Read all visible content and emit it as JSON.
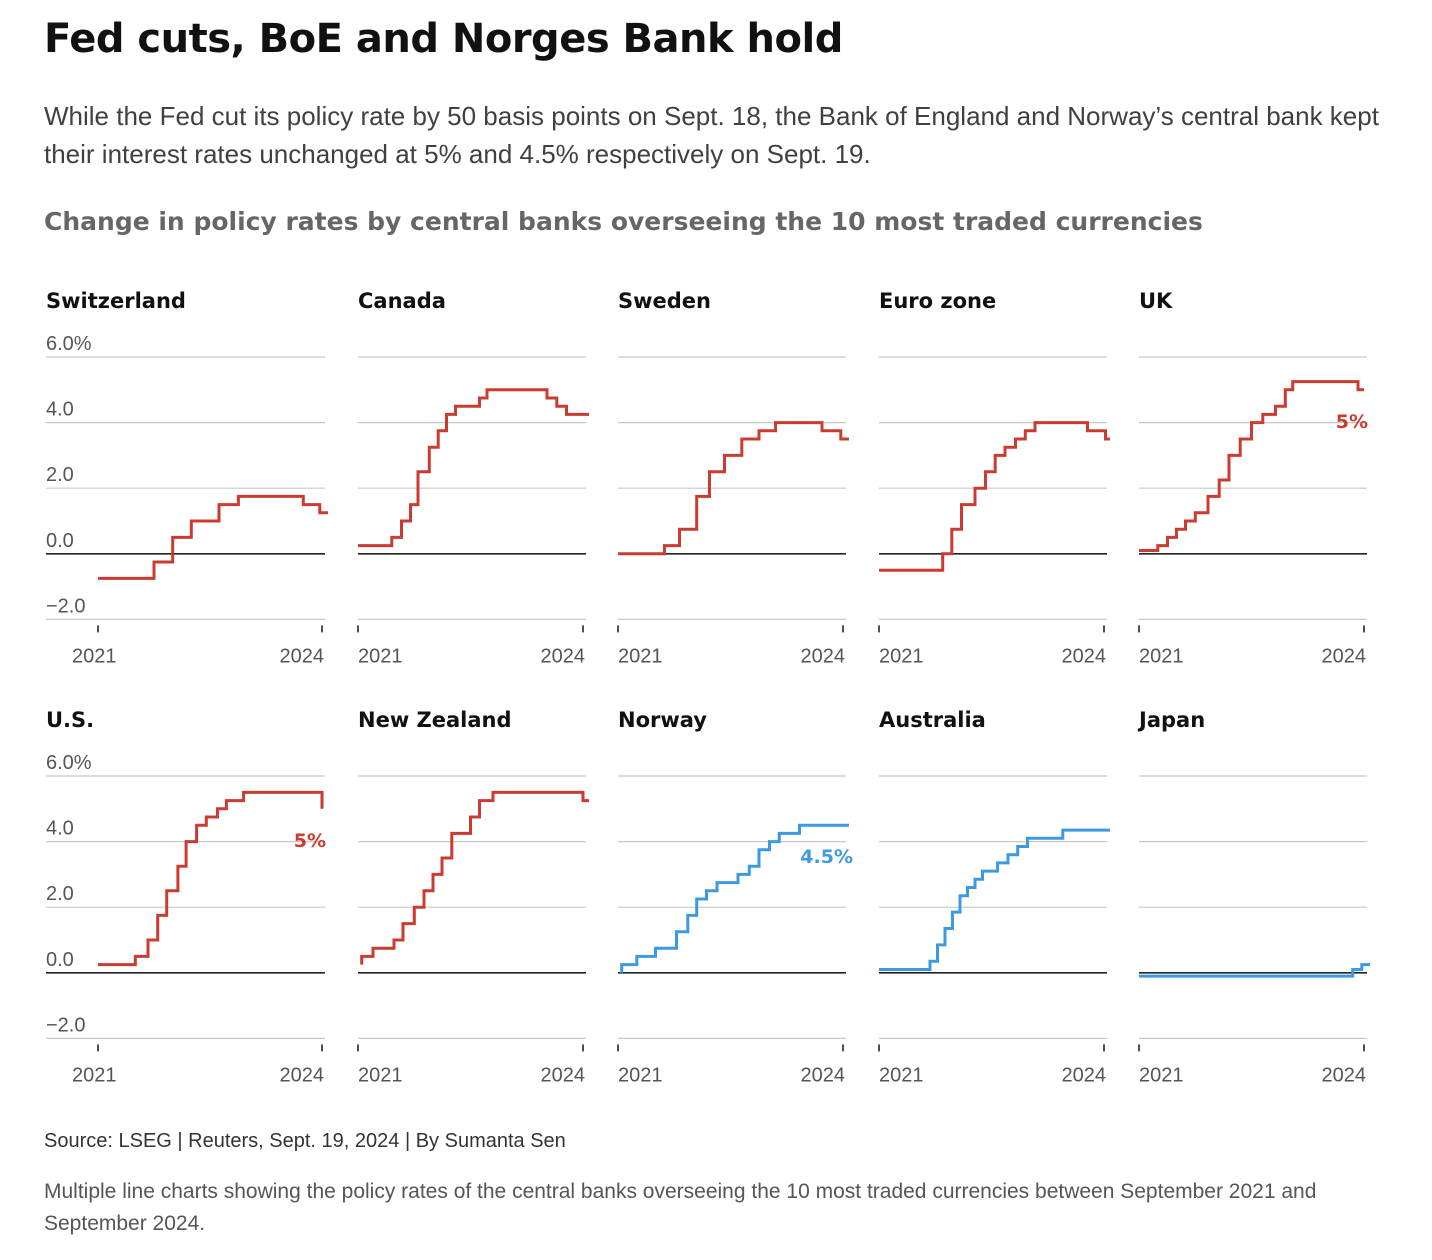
{
  "header": {
    "title": "Fed cuts, BoE and Norges Bank hold",
    "subtitle": "While the Fed cut its policy rate by 50 basis points on Sept. 18, the Bank of England and Norway’s central bank kept their interest rates unchanged at 5% and 4.5% respectively on Sept. 19.",
    "chart_heading": "Change in policy rates by central banks overseeing the 10 most traded currencies"
  },
  "footer": {
    "source": "Source: LSEG | Reuters, Sept. 19, 2024 | By Sumanta Sen",
    "description": "Multiple line charts showing the policy rates of the central banks overseeing the 10 most traded currencies between September 2021 and September 2024."
  },
  "colors": {
    "hiked": "#cc3b31",
    "cut_or_low": "#3d9ae0",
    "grid": "#c8c8c8",
    "zero_line": "#222222",
    "label": "#555555"
  },
  "chart_data": [
    {
      "type": "line",
      "panel": "Switzerland",
      "color": "#cc3b31",
      "ylim": [
        -2,
        6
      ],
      "yticks": [
        "6.0%",
        "4.0",
        "2.0",
        "0.0",
        "−2.0"
      ],
      "xticks": [
        "2021",
        "2024"
      ],
      "points": [
        [
          2021.0,
          -0.75
        ],
        [
          2021.75,
          -0.75
        ],
        [
          2021.75,
          -0.25
        ],
        [
          2022.0,
          -0.25
        ],
        [
          2022.0,
          0.5
        ],
        [
          2022.25,
          0.5
        ],
        [
          2022.25,
          1.0
        ],
        [
          2022.62,
          1.0
        ],
        [
          2022.62,
          1.5
        ],
        [
          2022.88,
          1.5
        ],
        [
          2022.88,
          1.75
        ],
        [
          2023.75,
          1.75
        ],
        [
          2023.75,
          1.5
        ],
        [
          2023.97,
          1.5
        ],
        [
          2023.97,
          1.25
        ],
        [
          2024.08,
          1.25
        ]
      ]
    },
    {
      "type": "line",
      "panel": "Canada",
      "color": "#cc3b31",
      "ylim": [
        -2,
        6
      ],
      "yticks": [],
      "xticks": [
        "2021",
        "2024"
      ],
      "points": [
        [
          2021.0,
          0.25
        ],
        [
          2021.45,
          0.25
        ],
        [
          2021.45,
          0.5
        ],
        [
          2021.58,
          0.5
        ],
        [
          2021.58,
          1.0
        ],
        [
          2021.7,
          1.0
        ],
        [
          2021.7,
          1.5
        ],
        [
          2021.8,
          1.5
        ],
        [
          2021.8,
          2.5
        ],
        [
          2021.95,
          2.5
        ],
        [
          2021.95,
          3.25
        ],
        [
          2022.07,
          3.25
        ],
        [
          2022.07,
          3.75
        ],
        [
          2022.18,
          3.75
        ],
        [
          2022.18,
          4.25
        ],
        [
          2022.3,
          4.25
        ],
        [
          2022.3,
          4.5
        ],
        [
          2022.62,
          4.5
        ],
        [
          2022.62,
          4.75
        ],
        [
          2022.72,
          4.75
        ],
        [
          2022.72,
          5.0
        ],
        [
          2023.52,
          5.0
        ],
        [
          2023.52,
          4.75
        ],
        [
          2023.65,
          4.75
        ],
        [
          2023.65,
          4.5
        ],
        [
          2023.78,
          4.5
        ],
        [
          2023.78,
          4.25
        ],
        [
          2024.08,
          4.25
        ]
      ]
    },
    {
      "type": "line",
      "panel": "Sweden",
      "color": "#cc3b31",
      "ylim": [
        -2,
        6
      ],
      "yticks": [],
      "xticks": [
        "2021",
        "2024"
      ],
      "points": [
        [
          2021.0,
          0.0
        ],
        [
          2021.62,
          0.0
        ],
        [
          2021.62,
          0.25
        ],
        [
          2021.82,
          0.25
        ],
        [
          2021.82,
          0.75
        ],
        [
          2022.05,
          0.75
        ],
        [
          2022.05,
          1.75
        ],
        [
          2022.22,
          1.75
        ],
        [
          2022.22,
          2.5
        ],
        [
          2022.42,
          2.5
        ],
        [
          2022.42,
          3.0
        ],
        [
          2022.65,
          3.0
        ],
        [
          2022.65,
          3.5
        ],
        [
          2022.88,
          3.5
        ],
        [
          2022.88,
          3.75
        ],
        [
          2023.1,
          3.75
        ],
        [
          2023.1,
          4.0
        ],
        [
          2023.72,
          4.0
        ],
        [
          2023.72,
          3.75
        ],
        [
          2023.97,
          3.75
        ],
        [
          2023.97,
          3.5
        ],
        [
          2024.08,
          3.5
        ]
      ]
    },
    {
      "type": "line",
      "panel": "Euro zone",
      "color": "#cc3b31",
      "ylim": [
        -2,
        6
      ],
      "yticks": [],
      "xticks": [
        "2021",
        "2024"
      ],
      "points": [
        [
          2021.0,
          -0.5
        ],
        [
          2021.85,
          -0.5
        ],
        [
          2021.85,
          0.0
        ],
        [
          2021.97,
          0.0
        ],
        [
          2021.97,
          0.75
        ],
        [
          2022.1,
          0.75
        ],
        [
          2022.1,
          1.5
        ],
        [
          2022.28,
          1.5
        ],
        [
          2022.28,
          2.0
        ],
        [
          2022.42,
          2.0
        ],
        [
          2022.42,
          2.5
        ],
        [
          2022.55,
          2.5
        ],
        [
          2022.55,
          3.0
        ],
        [
          2022.68,
          3.0
        ],
        [
          2022.68,
          3.25
        ],
        [
          2022.82,
          3.25
        ],
        [
          2022.82,
          3.5
        ],
        [
          2022.95,
          3.5
        ],
        [
          2022.95,
          3.75
        ],
        [
          2023.08,
          3.75
        ],
        [
          2023.08,
          4.0
        ],
        [
          2023.78,
          4.0
        ],
        [
          2023.78,
          3.75
        ],
        [
          2024.02,
          3.75
        ],
        [
          2024.02,
          3.5
        ],
        [
          2024.08,
          3.5
        ]
      ]
    },
    {
      "type": "line",
      "panel": "UK",
      "color": "#cc3b31",
      "ylim": [
        -2,
        6
      ],
      "yticks": [],
      "xticks": [
        "2021",
        "2024"
      ],
      "end_label": "5%",
      "points": [
        [
          2021.0,
          0.1
        ],
        [
          2021.25,
          0.1
        ],
        [
          2021.25,
          0.25
        ],
        [
          2021.38,
          0.25
        ],
        [
          2021.38,
          0.5
        ],
        [
          2021.5,
          0.5
        ],
        [
          2021.5,
          0.75
        ],
        [
          2021.62,
          0.75
        ],
        [
          2021.62,
          1.0
        ],
        [
          2021.75,
          1.0
        ],
        [
          2021.75,
          1.25
        ],
        [
          2021.92,
          1.25
        ],
        [
          2021.92,
          1.75
        ],
        [
          2022.07,
          1.75
        ],
        [
          2022.07,
          2.25
        ],
        [
          2022.2,
          2.25
        ],
        [
          2022.2,
          3.0
        ],
        [
          2022.35,
          3.0
        ],
        [
          2022.35,
          3.5
        ],
        [
          2022.5,
          3.5
        ],
        [
          2022.5,
          4.0
        ],
        [
          2022.65,
          4.0
        ],
        [
          2022.65,
          4.25
        ],
        [
          2022.82,
          4.25
        ],
        [
          2022.82,
          4.5
        ],
        [
          2022.95,
          4.5
        ],
        [
          2022.95,
          5.0
        ],
        [
          2023.05,
          5.0
        ],
        [
          2023.05,
          5.25
        ],
        [
          2023.92,
          5.25
        ],
        [
          2023.92,
          5.0
        ],
        [
          2024.0,
          5.0
        ]
      ]
    },
    {
      "type": "line",
      "panel": "U.S.",
      "color": "#cc3b31",
      "ylim": [
        -2,
        6
      ],
      "yticks": [
        "6.0%",
        "4.0",
        "2.0",
        "0.0",
        "−2.0"
      ],
      "xticks": [
        "2021",
        "2024"
      ],
      "end_label": "5%",
      "points": [
        [
          2021.0,
          0.25
        ],
        [
          2021.5,
          0.25
        ],
        [
          2021.5,
          0.5
        ],
        [
          2021.67,
          0.5
        ],
        [
          2021.67,
          1.0
        ],
        [
          2021.8,
          1.0
        ],
        [
          2021.8,
          1.75
        ],
        [
          2021.92,
          1.75
        ],
        [
          2021.92,
          2.5
        ],
        [
          2022.07,
          2.5
        ],
        [
          2022.07,
          3.25
        ],
        [
          2022.18,
          3.25
        ],
        [
          2022.18,
          4.0
        ],
        [
          2022.32,
          4.0
        ],
        [
          2022.32,
          4.5
        ],
        [
          2022.45,
          4.5
        ],
        [
          2022.45,
          4.75
        ],
        [
          2022.6,
          4.75
        ],
        [
          2022.6,
          5.0
        ],
        [
          2022.72,
          5.0
        ],
        [
          2022.72,
          5.25
        ],
        [
          2022.95,
          5.25
        ],
        [
          2022.95,
          5.5
        ],
        [
          2024.0,
          5.5
        ],
        [
          2024.0,
          5.0
        ]
      ]
    },
    {
      "type": "line",
      "panel": "New Zealand",
      "color": "#cc3b31",
      "ylim": [
        -2,
        6
      ],
      "yticks": [],
      "xticks": [
        "2021",
        "2024"
      ],
      "points": [
        [
          2021.05,
          0.25
        ],
        [
          2021.05,
          0.5
        ],
        [
          2021.2,
          0.5
        ],
        [
          2021.2,
          0.75
        ],
        [
          2021.48,
          0.75
        ],
        [
          2021.48,
          1.0
        ],
        [
          2021.6,
          1.0
        ],
        [
          2021.6,
          1.5
        ],
        [
          2021.75,
          1.5
        ],
        [
          2021.75,
          2.0
        ],
        [
          2021.88,
          2.0
        ],
        [
          2021.88,
          2.5
        ],
        [
          2022.0,
          2.5
        ],
        [
          2022.0,
          3.0
        ],
        [
          2022.12,
          3.0
        ],
        [
          2022.12,
          3.5
        ],
        [
          2022.25,
          3.5
        ],
        [
          2022.25,
          4.25
        ],
        [
          2022.5,
          4.25
        ],
        [
          2022.5,
          4.75
        ],
        [
          2022.62,
          4.75
        ],
        [
          2022.62,
          5.25
        ],
        [
          2022.8,
          5.25
        ],
        [
          2022.8,
          5.5
        ],
        [
          2024.0,
          5.5
        ],
        [
          2024.0,
          5.25
        ],
        [
          2024.08,
          5.25
        ]
      ]
    },
    {
      "type": "line",
      "panel": "Norway",
      "color": "#3d9ae0",
      "ylim": [
        -2,
        6
      ],
      "yticks": [],
      "xticks": [
        "2021",
        "2024"
      ],
      "end_label": "4.5%",
      "points": [
        [
          2021.05,
          0.0
        ],
        [
          2021.05,
          0.25
        ],
        [
          2021.25,
          0.25
        ],
        [
          2021.25,
          0.5
        ],
        [
          2021.5,
          0.5
        ],
        [
          2021.5,
          0.75
        ],
        [
          2021.78,
          0.75
        ],
        [
          2021.78,
          1.25
        ],
        [
          2021.93,
          1.25
        ],
        [
          2021.93,
          1.75
        ],
        [
          2022.05,
          1.75
        ],
        [
          2022.05,
          2.25
        ],
        [
          2022.18,
          2.25
        ],
        [
          2022.18,
          2.5
        ],
        [
          2022.32,
          2.5
        ],
        [
          2022.32,
          2.75
        ],
        [
          2022.6,
          2.75
        ],
        [
          2022.6,
          3.0
        ],
        [
          2022.75,
          3.0
        ],
        [
          2022.75,
          3.25
        ],
        [
          2022.88,
          3.25
        ],
        [
          2022.88,
          3.75
        ],
        [
          2023.02,
          3.75
        ],
        [
          2023.02,
          4.0
        ],
        [
          2023.15,
          4.0
        ],
        [
          2023.15,
          4.25
        ],
        [
          2023.42,
          4.25
        ],
        [
          2023.42,
          4.5
        ],
        [
          2024.08,
          4.5
        ]
      ]
    },
    {
      "type": "line",
      "panel": "Australia",
      "color": "#3d9ae0",
      "ylim": [
        -2,
        6
      ],
      "yticks": [],
      "xticks": [
        "2021",
        "2024"
      ],
      "points": [
        [
          2021.0,
          0.1
        ],
        [
          2021.68,
          0.1
        ],
        [
          2021.68,
          0.35
        ],
        [
          2021.78,
          0.35
        ],
        [
          2021.78,
          0.85
        ],
        [
          2021.88,
          0.85
        ],
        [
          2021.88,
          1.35
        ],
        [
          2021.98,
          1.35
        ],
        [
          2021.98,
          1.85
        ],
        [
          2022.08,
          1.85
        ],
        [
          2022.08,
          2.35
        ],
        [
          2022.18,
          2.35
        ],
        [
          2022.18,
          2.6
        ],
        [
          2022.28,
          2.6
        ],
        [
          2022.28,
          2.85
        ],
        [
          2022.38,
          2.85
        ],
        [
          2022.38,
          3.1
        ],
        [
          2022.58,
          3.1
        ],
        [
          2022.58,
          3.35
        ],
        [
          2022.72,
          3.35
        ],
        [
          2022.72,
          3.6
        ],
        [
          2022.85,
          3.6
        ],
        [
          2022.85,
          3.85
        ],
        [
          2022.98,
          3.85
        ],
        [
          2022.98,
          4.1
        ],
        [
          2023.45,
          4.1
        ],
        [
          2023.45,
          4.35
        ],
        [
          2024.08,
          4.35
        ]
      ]
    },
    {
      "type": "line",
      "panel": "Japan",
      "color": "#3d9ae0",
      "ylim": [
        -2,
        6
      ],
      "yticks": [],
      "xticks": [
        "2021",
        "2024"
      ],
      "points": [
        [
          2021.0,
          -0.1
        ],
        [
          2023.85,
          -0.1
        ],
        [
          2023.85,
          0.1
        ],
        [
          2023.97,
          0.1
        ],
        [
          2023.97,
          0.25
        ],
        [
          2024.08,
          0.25
        ]
      ]
    }
  ]
}
